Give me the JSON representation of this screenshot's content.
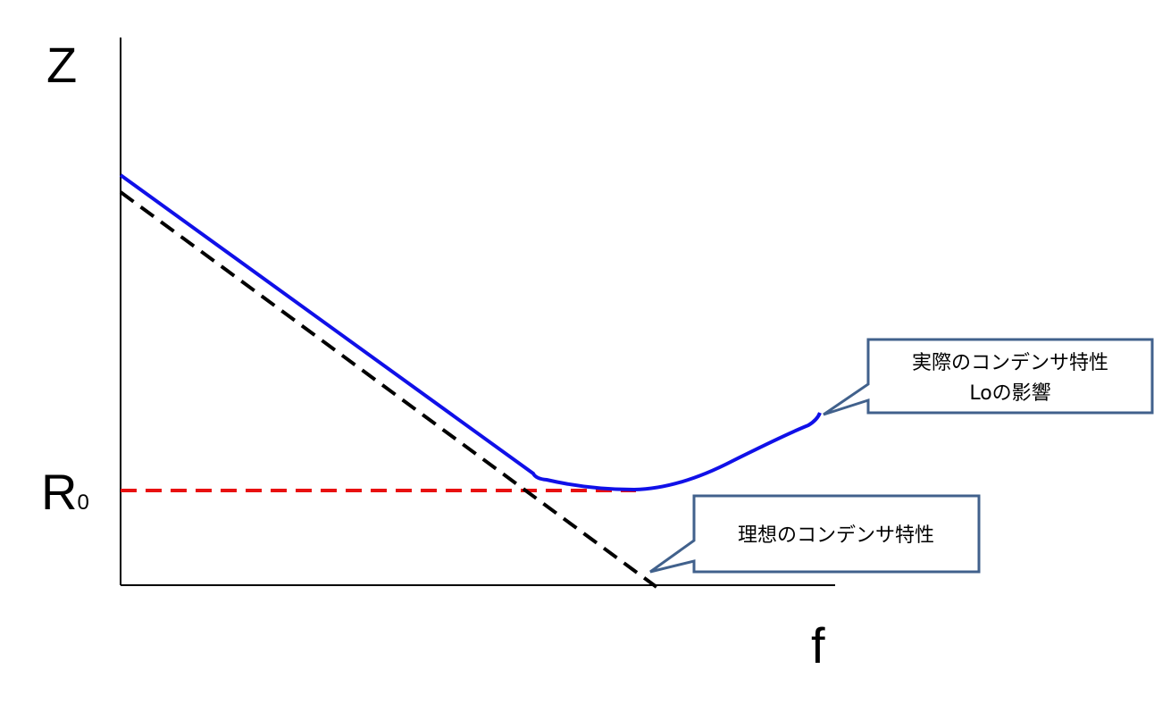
{
  "axes": {
    "y_label": "Z",
    "x_label": "f",
    "reference": {
      "main": "R",
      "sub": "0"
    }
  },
  "callouts": [
    {
      "lines": [
        "実際のコンデンサ特性",
        "Loの影響"
      ]
    },
    {
      "lines": [
        "理想のコンデンサ特性"
      ]
    }
  ]
}
